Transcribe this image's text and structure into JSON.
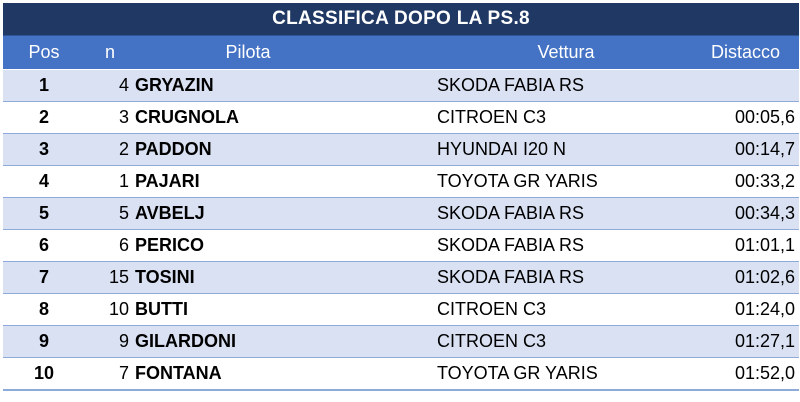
{
  "title": "CLASSIFICA DOPO LA PS.8",
  "columns": {
    "pos": "Pos",
    "num": "n",
    "pilota": "Pilota",
    "vettura": "Vettura",
    "distacco": "Distacco"
  },
  "rows": [
    {
      "pos": "1",
      "num": "4",
      "pilota": "GRYAZIN",
      "vettura": "SKODA FABIA RS",
      "distacco": ""
    },
    {
      "pos": "2",
      "num": "3",
      "pilota": "CRUGNOLA",
      "vettura": "CITROEN C3",
      "distacco": "00:05,6"
    },
    {
      "pos": "3",
      "num": "2",
      "pilota": "PADDON",
      "vettura": "HYUNDAI I20 N",
      "distacco": "00:14,7"
    },
    {
      "pos": "4",
      "num": "1",
      "pilota": "PAJARI",
      "vettura": "TOYOTA GR YARIS",
      "distacco": "00:33,2"
    },
    {
      "pos": "5",
      "num": "5",
      "pilota": "AVBELJ",
      "vettura": "SKODA FABIA RS",
      "distacco": "00:34,3"
    },
    {
      "pos": "6",
      "num": "6",
      "pilota": "PERICO",
      "vettura": "SKODA FABIA RS",
      "distacco": "01:01,1"
    },
    {
      "pos": "7",
      "num": "15",
      "pilota": "TOSINI",
      "vettura": "SKODA FABIA RS",
      "distacco": "01:02,6"
    },
    {
      "pos": "8",
      "num": "10",
      "pilota": "BUTTI",
      "vettura": "CITROEN C3",
      "distacco": "01:24,0"
    },
    {
      "pos": "9",
      "num": "9",
      "pilota": "GILARDONI",
      "vettura": "CITROEN C3",
      "distacco": "01:27,1"
    },
    {
      "pos": "10",
      "num": "7",
      "pilota": "FONTANA",
      "vettura": "TOYOTA GR YARIS",
      "distacco": "01:52,0"
    }
  ],
  "colors": {
    "title_bg": "#1f3864",
    "header_bg": "#4472c4",
    "row_band": "#d9e1f2"
  }
}
